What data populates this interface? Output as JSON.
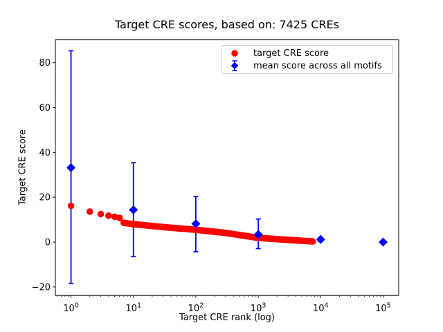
{
  "chart_data": {
    "type": "scatter",
    "title": "Target CRE scores, based on: 7425 CREs",
    "xlabel": "Target CRE rank (log)",
    "ylabel": "Target CRE score",
    "x_scale": "log",
    "xlim": [
      0.562,
      177828
    ],
    "ylim": [
      -23.8,
      90.2
    ],
    "xticks": [
      1,
      10,
      100,
      1000,
      10000,
      100000
    ],
    "xtick_labels": [
      "10^0",
      "10^1",
      "10^2",
      "10^3",
      "10^4",
      "10^5"
    ],
    "yticks": [
      -20,
      0,
      20,
      40,
      60,
      80
    ],
    "ytick_labels": [
      "−20",
      "0",
      "20",
      "40",
      "60",
      "80"
    ],
    "grid": false,
    "legend_position": "upper right",
    "colors": {
      "target_score": "#ff0000",
      "mean_score": "#0000ff",
      "axis": "#000000",
      "legend_border": "#cccccc"
    },
    "series": [
      {
        "name": "target CRE score",
        "marker": "circle",
        "color": "#ff0000",
        "n_points": 7425,
        "head_points": [
          [
            1,
            16.2
          ],
          [
            2,
            13.6
          ],
          [
            3,
            12.5
          ],
          [
            4,
            11.8
          ],
          [
            5,
            11.3
          ],
          [
            6,
            10.8
          ]
        ],
        "band_anchor_points": [
          [
            7,
            8.6
          ],
          [
            10,
            8.0
          ],
          [
            30,
            6.7
          ],
          [
            100,
            5.5
          ],
          [
            300,
            4.1
          ],
          [
            1000,
            1.9
          ],
          [
            3000,
            1.0
          ],
          [
            7425,
            0.3
          ]
        ]
      },
      {
        "name": "mean score across all motifs",
        "marker": "diamond",
        "color": "#0000ff",
        "points": [
          {
            "x": 1,
            "mean": 33.2,
            "err_top": 85.3,
            "err_bottom": -18.4
          },
          {
            "x": 10,
            "mean": 14.4,
            "err_top": 35.4,
            "err_bottom": -6.4
          },
          {
            "x": 100,
            "mean": 8.2,
            "err_top": 20.3,
            "err_bottom": -4.3
          },
          {
            "x": 1000,
            "mean": 3.4,
            "err_top": 10.3,
            "err_bottom": -2.9
          },
          {
            "x": 10000,
            "mean": 1.2,
            "err_top": 2.1,
            "err_bottom": 0.3
          },
          {
            "x": 100000,
            "mean": 0.0,
            "err_top": 0.4,
            "err_bottom": -0.4
          }
        ]
      }
    ]
  }
}
